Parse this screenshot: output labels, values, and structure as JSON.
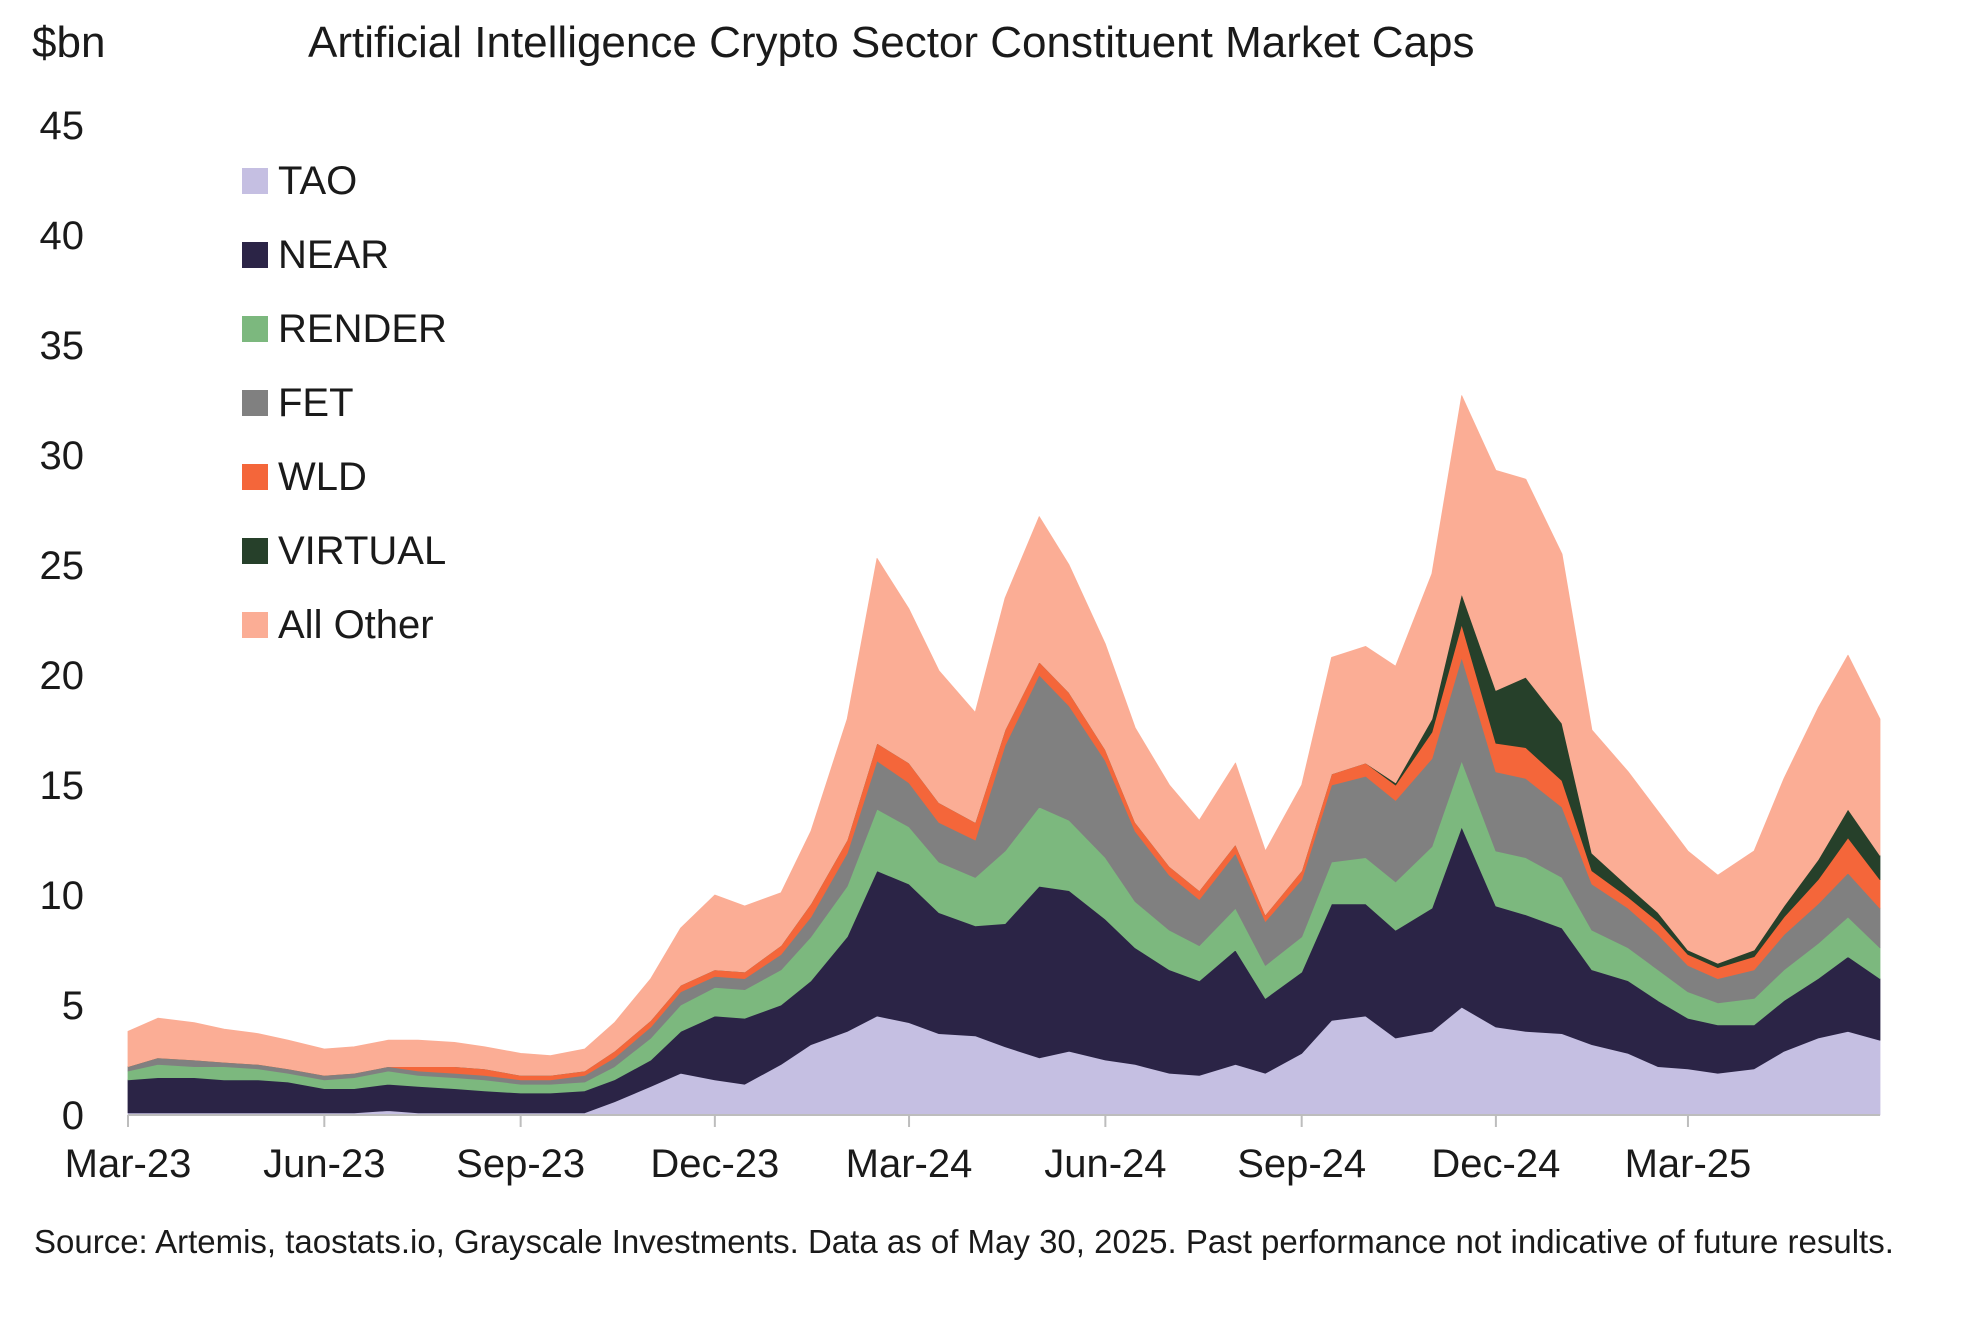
{
  "chart_data": {
    "type": "area",
    "stacked": true,
    "title": "Artificial Intelligence Crypto Sector Constituent Market Caps",
    "ylabel": "$bn",
    "xlabel": "",
    "ylim": [
      0,
      45
    ],
    "yticks": [
      "0",
      "5",
      "10",
      "15",
      "20",
      "25",
      "30",
      "35",
      "40",
      "45"
    ],
    "xticks": [
      "Mar-23",
      "Jun-23",
      "Sep-23",
      "Dec-23",
      "Mar-24",
      "Jun-24",
      "Sep-24",
      "Dec-24",
      "Mar-25"
    ],
    "x": [
      "2023-03-01",
      "2023-03-15",
      "2023-04-01",
      "2023-04-15",
      "2023-05-01",
      "2023-05-15",
      "2023-06-01",
      "2023-06-15",
      "2023-07-01",
      "2023-07-15",
      "2023-08-01",
      "2023-08-15",
      "2023-09-01",
      "2023-09-15",
      "2023-10-01",
      "2023-10-15",
      "2023-11-01",
      "2023-11-15",
      "2023-12-01",
      "2023-12-15",
      "2024-01-01",
      "2024-01-15",
      "2024-02-01",
      "2024-02-15",
      "2024-03-01",
      "2024-03-15",
      "2024-04-01",
      "2024-04-15",
      "2024-05-01",
      "2024-05-15",
      "2024-06-01",
      "2024-06-15",
      "2024-07-01",
      "2024-07-15",
      "2024-08-01",
      "2024-08-15",
      "2024-09-01",
      "2024-09-15",
      "2024-10-01",
      "2024-10-15",
      "2024-11-01",
      "2024-11-15",
      "2024-12-01",
      "2024-12-15",
      "2025-01-01",
      "2025-01-15",
      "2025-02-01",
      "2025-02-15",
      "2025-03-01",
      "2025-03-15",
      "2025-04-01",
      "2025-04-15",
      "2025-05-01",
      "2025-05-15",
      "2025-05-30"
    ],
    "series": [
      {
        "name": "TAO",
        "color": "#c5bfe2",
        "values": [
          0.1,
          0.1,
          0.1,
          0.1,
          0.1,
          0.1,
          0.1,
          0.1,
          0.2,
          0.1,
          0.1,
          0.1,
          0.1,
          0.1,
          0.1,
          0.6,
          1.3,
          1.9,
          1.6,
          1.4,
          2.3,
          3.2,
          3.8,
          4.5,
          4.2,
          3.7,
          3.6,
          3.1,
          2.6,
          2.9,
          2.5,
          2.3,
          1.9,
          1.8,
          2.3,
          1.9,
          2.8,
          4.3,
          4.5,
          3.5,
          3.8,
          4.9,
          4.0,
          3.8,
          3.7,
          3.2,
          2.8,
          2.2,
          2.1,
          1.9,
          2.1,
          2.9,
          3.5,
          3.8,
          3.4
        ]
      },
      {
        "name": "NEAR",
        "color": "#2b2446",
        "values": [
          1.5,
          1.6,
          1.6,
          1.5,
          1.5,
          1.4,
          1.1,
          1.1,
          1.2,
          1.2,
          1.1,
          1.0,
          0.9,
          0.9,
          1.0,
          1.0,
          1.2,
          1.9,
          2.9,
          3.0,
          2.7,
          2.9,
          4.3,
          6.6,
          6.3,
          5.5,
          5.0,
          5.6,
          7.8,
          7.3,
          6.4,
          5.3,
          4.7,
          4.3,
          5.2,
          3.4,
          3.7,
          5.3,
          5.1,
          4.9,
          5.6,
          8.2,
          5.5,
          5.3,
          4.8,
          3.4,
          3.3,
          3.0,
          2.3,
          2.2,
          2.0,
          2.3,
          2.7,
          3.4,
          2.8
        ]
      },
      {
        "name": "RENDER",
        "color": "#7cb87e",
        "values": [
          0.4,
          0.6,
          0.5,
          0.6,
          0.5,
          0.4,
          0.4,
          0.5,
          0.6,
          0.5,
          0.5,
          0.5,
          0.4,
          0.4,
          0.4,
          0.6,
          1.0,
          1.2,
          1.3,
          1.3,
          1.6,
          2.0,
          2.3,
          2.8,
          2.6,
          2.3,
          2.2,
          3.3,
          3.6,
          3.2,
          2.8,
          2.1,
          1.8,
          1.6,
          1.9,
          1.5,
          1.6,
          1.9,
          2.1,
          2.2,
          2.8,
          3.0,
          2.5,
          2.6,
          2.3,
          1.8,
          1.5,
          1.4,
          1.2,
          1.0,
          1.2,
          1.4,
          1.6,
          1.8,
          1.4
        ]
      },
      {
        "name": "FET",
        "color": "#808080",
        "values": [
          0.2,
          0.3,
          0.3,
          0.2,
          0.2,
          0.2,
          0.2,
          0.2,
          0.2,
          0.2,
          0.2,
          0.2,
          0.2,
          0.2,
          0.3,
          0.4,
          0.5,
          0.6,
          0.5,
          0.5,
          0.7,
          0.9,
          1.5,
          2.2,
          2.0,
          1.8,
          1.7,
          4.8,
          6.0,
          5.2,
          4.4,
          3.2,
          2.5,
          2.1,
          2.5,
          2.0,
          2.6,
          3.5,
          3.7,
          3.7,
          4.0,
          4.7,
          3.6,
          3.6,
          3.2,
          2.1,
          1.8,
          1.6,
          1.2,
          1.1,
          1.3,
          1.6,
          1.8,
          2.0,
          1.8
        ]
      },
      {
        "name": "WLD",
        "color": "#f4663a",
        "values": [
          0.0,
          0.0,
          0.0,
          0.0,
          0.0,
          0.0,
          0.0,
          0.0,
          0.0,
          0.2,
          0.3,
          0.3,
          0.2,
          0.2,
          0.2,
          0.3,
          0.3,
          0.3,
          0.3,
          0.3,
          0.4,
          0.6,
          0.6,
          0.8,
          0.9,
          0.9,
          0.8,
          0.7,
          0.6,
          0.6,
          0.5,
          0.4,
          0.4,
          0.4,
          0.4,
          0.3,
          0.4,
          0.5,
          0.6,
          0.7,
          1.2,
          1.5,
          1.3,
          1.4,
          1.2,
          0.6,
          0.5,
          0.6,
          0.5,
          0.5,
          0.6,
          0.8,
          1.1,
          1.6,
          1.3
        ]
      },
      {
        "name": "VIRTUAL",
        "color": "#26402a",
        "values": [
          0,
          0,
          0,
          0,
          0,
          0,
          0,
          0,
          0,
          0,
          0,
          0,
          0,
          0,
          0,
          0,
          0,
          0,
          0,
          0,
          0,
          0,
          0,
          0,
          0,
          0,
          0,
          0,
          0,
          0,
          0,
          0,
          0,
          0,
          0,
          0,
          0,
          0,
          0,
          0.1,
          0.6,
          1.4,
          2.4,
          3.2,
          2.6,
          0.8,
          0.5,
          0.4,
          0.2,
          0.2,
          0.3,
          0.5,
          0.9,
          1.3,
          1.1
        ]
      },
      {
        "name": "All Other",
        "color": "#fbad95",
        "values": [
          1.6,
          1.8,
          1.7,
          1.5,
          1.4,
          1.3,
          1.2,
          1.2,
          1.2,
          1.2,
          1.1,
          1.0,
          1.0,
          0.9,
          1.0,
          1.3,
          1.9,
          2.6,
          3.4,
          3.0,
          2.4,
          3.3,
          5.5,
          8.4,
          7.0,
          6.0,
          5.0,
          6.0,
          6.6,
          5.8,
          4.8,
          4.3,
          3.7,
          3.2,
          3.7,
          2.9,
          3.9,
          5.3,
          5.3,
          5.3,
          6.6,
          9.0,
          10.0,
          9.0,
          7.7,
          5.6,
          5.2,
          4.6,
          4.5,
          4.0,
          4.5,
          5.8,
          6.9,
          7.0,
          6.2
        ]
      }
    ]
  },
  "source_note": "Source: Artemis, taostats.io, Grayscale Investments. Data as of May 30, 2025. Past performance not indicative of future results."
}
